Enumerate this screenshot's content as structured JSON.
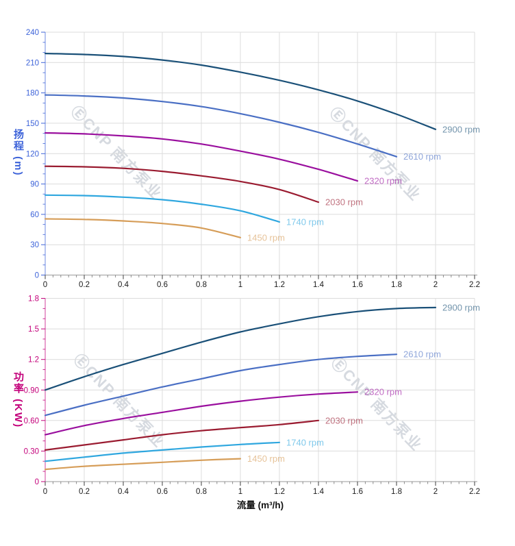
{
  "watermark": {
    "text": "ⒺCNP 南方泵业"
  },
  "chart_data": [
    {
      "type": "line",
      "title": "",
      "ylabel": "扬程 (m)",
      "xlabel": "",
      "xlim": [
        0,
        2.2
      ],
      "ylim": [
        0,
        240
      ],
      "grid": true,
      "axis_color": "#3D63D9",
      "x_tick_color": "#1a1a1a",
      "x_ticks": {
        "values": [
          0,
          0.2,
          0.4,
          0.6,
          0.8,
          1.0,
          1.2,
          1.4,
          1.6,
          1.8,
          2.0,
          2.2
        ],
        "labels": [
          "0",
          "0.2",
          "0.4",
          "0.6",
          "0.8",
          "1",
          "1.2",
          "1.4",
          "1.6",
          "1.8",
          "2",
          "2.2"
        ],
        "minor_step": 0.04
      },
      "y_ticks": {
        "values": [
          0,
          30,
          60,
          90,
          120,
          150,
          180,
          210,
          240
        ],
        "labels": [
          "0",
          "30",
          "60",
          "90",
          "120",
          "150",
          "180",
          "210",
          "240"
        ],
        "minor_step": 10
      },
      "legend_position": "end-of-curve",
      "series": [
        {
          "name": "2900 rpm",
          "color": "#1A5078",
          "x": [
            0,
            0.2,
            0.4,
            0.6,
            0.8,
            1.0,
            1.2,
            1.4,
            1.6,
            1.8,
            2.0
          ],
          "y": [
            219,
            218,
            216,
            212.5,
            207.5,
            200.5,
            192.5,
            183,
            172,
            159,
            144
          ]
        },
        {
          "name": "2610 rpm",
          "color": "#4A6FC4",
          "x": [
            0,
            0.2,
            0.4,
            0.6,
            0.8,
            1.0,
            1.2,
            1.4,
            1.6,
            1.8
          ],
          "y": [
            178,
            177,
            175,
            171.5,
            166.5,
            159.5,
            151,
            141,
            129.5,
            117
          ]
        },
        {
          "name": "2320 rpm",
          "color": "#9A0F9E",
          "x": [
            0,
            0.2,
            0.4,
            0.6,
            0.8,
            1.0,
            1.2,
            1.4,
            1.6
          ],
          "y": [
            140.5,
            139.5,
            137.5,
            134.5,
            129.5,
            122.5,
            114.5,
            104.5,
            93
          ]
        },
        {
          "name": "2030 rpm",
          "color": "#9A1B30",
          "x": [
            0,
            0.2,
            0.4,
            0.6,
            0.8,
            1.0,
            1.2,
            1.4
          ],
          "y": [
            107.5,
            107,
            105.5,
            102.5,
            98,
            92.5,
            84.5,
            72
          ]
        },
        {
          "name": "1740 rpm",
          "color": "#2FA7DF",
          "x": [
            0,
            0.2,
            0.4,
            0.6,
            0.8,
            1.0,
            1.2
          ],
          "y": [
            79,
            78.5,
            77,
            74.5,
            70,
            63.5,
            52.5
          ]
        },
        {
          "name": "1450 rpm",
          "color": "#D69D58",
          "x": [
            0,
            0.2,
            0.4,
            0.6,
            0.8,
            1.0
          ],
          "y": [
            55.5,
            55,
            53.5,
            51,
            46.5,
            37
          ]
        }
      ]
    },
    {
      "type": "line",
      "title": "",
      "ylabel": "功率 (KW)",
      "xlabel": "流量 (m³/h)",
      "xlim": [
        0,
        2.2
      ],
      "ylim": [
        0,
        1.8
      ],
      "grid": true,
      "axis_color": "#C3007A",
      "x_tick_color": "#1a1a1a",
      "x_ticks": {
        "values": [
          0,
          0.2,
          0.4,
          0.6,
          0.8,
          1.0,
          1.2,
          1.4,
          1.6,
          1.8,
          2.0,
          2.2
        ],
        "labels": [
          "0",
          "0.2",
          "0.4",
          "0.6",
          "0.8",
          "1",
          "1.2",
          "1.4",
          "1.6",
          "1.8",
          "2",
          "2.2"
        ],
        "minor_step": 0.04
      },
      "y_ticks": {
        "values": [
          0,
          0.3,
          0.6,
          0.9,
          1.2,
          1.5,
          1.8
        ],
        "labels": [
          "0",
          "0.30",
          "0.60",
          "0.90",
          "1.2",
          "1.5",
          "1.8"
        ],
        "minor_step": 0.1
      },
      "legend_position": "end-of-curve",
      "series": [
        {
          "name": "2900 rpm",
          "color": "#1A5078",
          "x": [
            0,
            0.2,
            0.4,
            0.6,
            0.8,
            1.0,
            1.2,
            1.4,
            1.6,
            1.8,
            2.0
          ],
          "y": [
            0.9,
            1.03,
            1.15,
            1.26,
            1.37,
            1.47,
            1.55,
            1.62,
            1.67,
            1.7,
            1.71
          ]
        },
        {
          "name": "2610 rpm",
          "color": "#4A6FC4",
          "x": [
            0,
            0.2,
            0.4,
            0.6,
            0.8,
            1.0,
            1.2,
            1.4,
            1.6,
            1.8
          ],
          "y": [
            0.65,
            0.75,
            0.84,
            0.93,
            1.01,
            1.09,
            1.15,
            1.2,
            1.23,
            1.25
          ]
        },
        {
          "name": "2320 rpm",
          "color": "#9A0F9E",
          "x": [
            0,
            0.2,
            0.4,
            0.6,
            0.8,
            1.0,
            1.2,
            1.4,
            1.6
          ],
          "y": [
            0.46,
            0.55,
            0.62,
            0.68,
            0.74,
            0.79,
            0.83,
            0.86,
            0.88
          ]
        },
        {
          "name": "2030 rpm",
          "color": "#9A1B30",
          "x": [
            0,
            0.2,
            0.4,
            0.6,
            0.8,
            1.0,
            1.2,
            1.4
          ],
          "y": [
            0.31,
            0.36,
            0.41,
            0.46,
            0.5,
            0.53,
            0.56,
            0.6
          ]
        },
        {
          "name": "1740 rpm",
          "color": "#2FA7DF",
          "x": [
            0,
            0.2,
            0.4,
            0.6,
            0.8,
            1.0,
            1.2
          ],
          "y": [
            0.2,
            0.24,
            0.28,
            0.31,
            0.34,
            0.365,
            0.385
          ]
        },
        {
          "name": "1450 rpm",
          "color": "#D69D58",
          "x": [
            0,
            0.2,
            0.4,
            0.6,
            0.8,
            1.0
          ],
          "y": [
            0.12,
            0.15,
            0.17,
            0.19,
            0.21,
            0.225
          ]
        }
      ]
    }
  ]
}
